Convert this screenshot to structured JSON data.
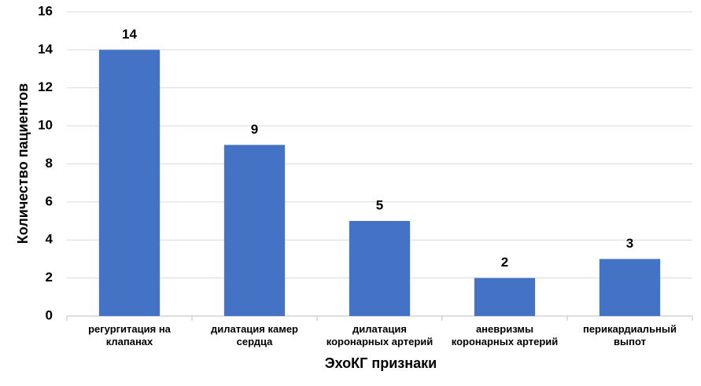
{
  "chart_data": {
    "type": "bar",
    "xlabel": "ЭхоКГ признаки",
    "ylabel": "Количество пациентов",
    "categories": [
      "регургитация на клапанах",
      "дилатация камер сердца",
      "дилатация коронарных артерий",
      "аневризмы коронарных артерий",
      "перикардиальный выпот"
    ],
    "values": [
      14,
      9,
      5,
      2,
      3
    ],
    "color": "#4472c4",
    "ylim": [
      0,
      16
    ],
    "yticks": [
      0,
      2,
      4,
      6,
      8,
      10,
      12,
      14,
      16
    ],
    "grid": true
  }
}
